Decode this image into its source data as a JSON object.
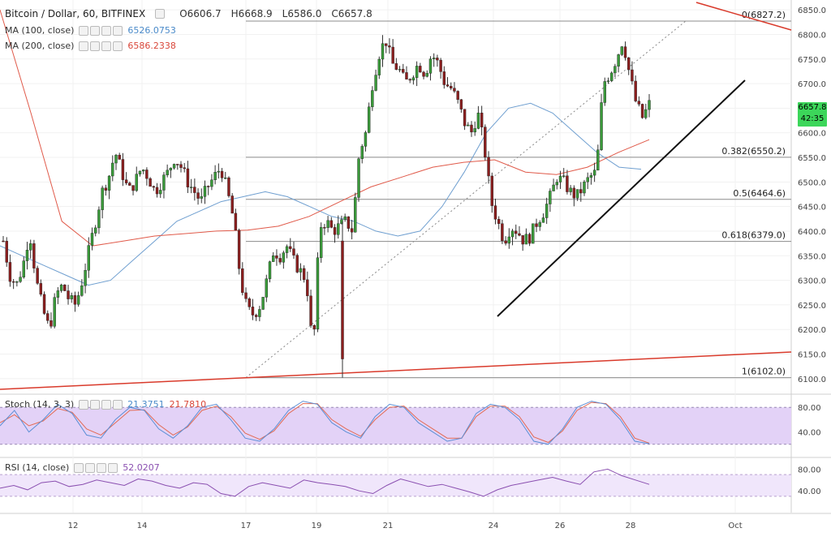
{
  "header": {
    "symbol_title": "Bitcoin / Dollar, 60, BITFINEX",
    "open": "O6606.7",
    "high": "H6668.9",
    "low": "L6586.0",
    "close": "C6657.8",
    "ma100_label": "MA (100, close)",
    "ma100_value": "6526.0753",
    "ma200_label": "MA (200, close)",
    "ma200_value": "6586.2338",
    "stoch_label": "Stoch (14, 3, 3)",
    "stoch_k_value": "21.3751",
    "stoch_d_value": "21.7810",
    "rsi_label": "RSI (14, close)",
    "rsi_value": "52.0207"
  },
  "price_tag": {
    "price": "6657.8",
    "countdown": "42:35"
  },
  "colors": {
    "candle_up": "#3a9a3a",
    "candle_down": "#8b1e1e",
    "ma100": "#6f9fd0",
    "ma200": "#e05a4a",
    "trendline_red": "#d93a2b",
    "stoch_bg": "#e3d2f7",
    "rsi_bg": "#f0e6fb",
    "stoch_k": "#5b8fd6",
    "stoch_d": "#e36a53",
    "rsi_line": "#8a4fb0",
    "tag": "#3cd65a"
  },
  "chart_data": {
    "type": "candlestick",
    "title": "Bitcoin / Dollar, 60, BITFINEX",
    "ylim": [
      6070,
      6870
    ],
    "y_ticks": [
      6100,
      6150,
      6200,
      6250,
      6300,
      6350,
      6400,
      6450,
      6500,
      6550,
      6600,
      6650,
      6700,
      6750,
      6800,
      6850
    ],
    "x_ticks": [
      "12",
      "14",
      "17",
      "19",
      "21",
      "24",
      "26",
      "28",
      "Oct"
    ],
    "fibonacci": [
      {
        "label": "0(6827.2)",
        "level": 6827.2
      },
      {
        "label": "0.382(6550.2)",
        "level": 6550.2
      },
      {
        "label": "0.5(6464.6)",
        "level": 6464.6
      },
      {
        "label": "0.618(6379.0)",
        "level": 6379.0
      },
      {
        "label": "1(6102.0)",
        "level": 6102.0
      }
    ],
    "price_path": [
      6380,
      6310,
      6290,
      6330,
      6400,
      6300,
      6240,
      6200,
      6270,
      6290,
      6260,
      6250,
      6300,
      6360,
      6420,
      6480,
      6510,
      6560,
      6520,
      6480,
      6500,
      6530,
      6510,
      6480,
      6500,
      6520,
      6550,
      6530,
      6500,
      6480,
      6460,
      6490,
      6510,
      6530,
      6480,
      6420,
      6300,
      6240,
      6230,
      6250,
      6300,
      6360,
      6350,
      6370,
      6340,
      6320,
      6300,
      6150,
      6410,
      6420,
      6400,
      6410,
      6420,
      6400,
      6560,
      6600,
      6700,
      6760,
      6790,
      6740,
      6730,
      6700,
      6720,
      6740,
      6720,
      6760,
      6740,
      6700,
      6690,
      6660,
      6620,
      6600,
      6640,
      6570,
      6460,
      6420,
      6380,
      6410,
      6400,
      6380,
      6390,
      6420,
      6440,
      6470,
      6510,
      6500,
      6480,
      6470,
      6490,
      6510,
      6520,
      6700,
      6720,
      6750,
      6790,
      6720,
      6660,
      6630,
      6657.8
    ],
    "ma100_path": [
      6370,
      6350,
      6330,
      6310,
      6290,
      6300,
      6340,
      6380,
      6420,
      6440,
      6460,
      6470,
      6480,
      6470,
      6450,
      6430,
      6420,
      6400,
      6390,
      6400,
      6450,
      6520,
      6600,
      6650,
      6660,
      6640,
      6600,
      6560,
      6530,
      6526
    ],
    "ma200_path": [
      6850,
      6640,
      6420,
      6370,
      6380,
      6390,
      6395,
      6400,
      6402,
      6410,
      6430,
      6460,
      6490,
      6510,
      6530,
      6540,
      6545,
      6520,
      6515,
      6530,
      6560,
      6586
    ]
  },
  "stoch": {
    "ylim": [
      0,
      100
    ],
    "y_ticks": [
      40,
      80
    ],
    "upper": 80,
    "lower": 20,
    "k_path": [
      50,
      75,
      40,
      60,
      85,
      70,
      35,
      30,
      60,
      80,
      75,
      45,
      30,
      50,
      80,
      85,
      60,
      30,
      25,
      45,
      75,
      90,
      85,
      55,
      40,
      30,
      65,
      85,
      80,
      55,
      40,
      25,
      30,
      70,
      85,
      80,
      60,
      25,
      20,
      45,
      80,
      90,
      85,
      60,
      25,
      21
    ],
    "d_path": [
      55,
      68,
      50,
      58,
      78,
      72,
      45,
      35,
      55,
      75,
      76,
      52,
      35,
      48,
      75,
      82,
      65,
      38,
      28,
      42,
      70,
      86,
      86,
      60,
      45,
      33,
      60,
      80,
      82,
      60,
      45,
      30,
      30,
      65,
      82,
      82,
      65,
      32,
      23,
      42,
      75,
      88,
      86,
      65,
      30,
      22
    ]
  },
  "rsi": {
    "ylim": [
      0,
      100
    ],
    "y_ticks": [
      40,
      80
    ],
    "upper": 70,
    "lower": 30,
    "path": [
      45,
      50,
      42,
      55,
      58,
      48,
      52,
      60,
      55,
      50,
      62,
      58,
      50,
      45,
      55,
      52,
      35,
      30,
      48,
      55,
      50,
      45,
      60,
      55,
      52,
      48,
      40,
      35,
      50,
      62,
      55,
      48,
      52,
      45,
      38,
      30,
      42,
      50,
      55,
      60,
      65,
      58,
      52,
      75,
      80,
      68,
      60,
      52
    ]
  }
}
